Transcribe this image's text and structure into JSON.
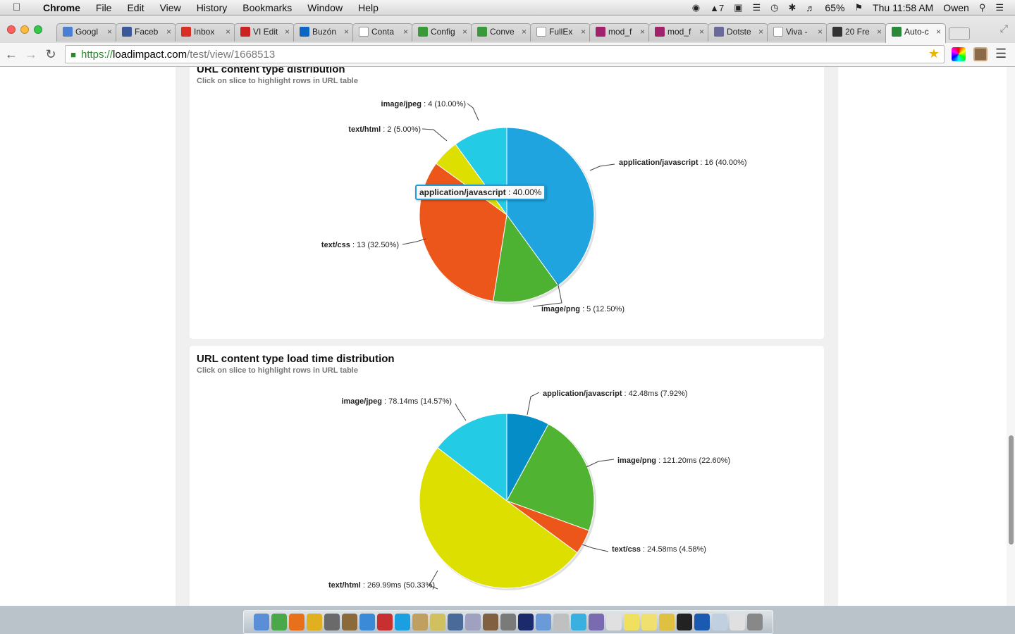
{
  "os_menu": {
    "app_name": "Chrome",
    "items": [
      "File",
      "Edit",
      "View",
      "History",
      "Bookmarks",
      "Window",
      "Help"
    ],
    "status": {
      "badge": "7",
      "battery": "65%",
      "clock": "Thu 11:58 AM",
      "user": "Owen"
    }
  },
  "tabs": [
    {
      "title": "Googl",
      "icon": "translate-icon",
      "color": "#4a7fd4"
    },
    {
      "title": "Faceb",
      "icon": "facebook-icon",
      "color": "#3b5998"
    },
    {
      "title": "Inbox",
      "icon": "gmail-icon",
      "color": "#d93025"
    },
    {
      "title": "VI Edit",
      "icon": "vi-icon",
      "color": "#cc2222"
    },
    {
      "title": "Buzón",
      "icon": "linkedin-icon",
      "color": "#0a66c2"
    },
    {
      "title": "Conta",
      "icon": "page-icon",
      "color": "#ffffff"
    },
    {
      "title": "Config",
      "icon": "green-g-icon",
      "color": "#3a9a3a"
    },
    {
      "title": "Conve",
      "icon": "green-g-icon",
      "color": "#3a9a3a"
    },
    {
      "title": "FullEx",
      "icon": "page-icon",
      "color": "#ffffff"
    },
    {
      "title": "mod_f",
      "icon": "feather-icon",
      "color": "#a0226a"
    },
    {
      "title": "mod_f",
      "icon": "feather-icon",
      "color": "#a0226a"
    },
    {
      "title": "Dotste",
      "icon": "dotstore-icon",
      "color": "#6a6a9a"
    },
    {
      "title": "Viva -",
      "icon": "page-icon",
      "color": "#ffffff"
    },
    {
      "title": "20 Fre",
      "icon": "sr-icon",
      "color": "#333333"
    },
    {
      "title": "Auto-c",
      "icon": "loadimpact-icon",
      "color": "#2a8a3a",
      "active": true
    }
  ],
  "address": {
    "scheme": "https://",
    "host": "loadimpact.com",
    "path": "/test/view/1668513"
  },
  "panels": [
    {
      "title": "URL content type distribution",
      "subtitle": "Click on slice to highlight rows in URL table",
      "tooltip": {
        "name": "application/javascript",
        "value": " : 40.00%"
      }
    },
    {
      "title": "URL content type load time distribution",
      "subtitle": "Click on slice to highlight rows in URL table"
    }
  ],
  "chart_data": [
    {
      "type": "pie",
      "title": "URL content type distribution",
      "slices": [
        {
          "name": "application/javascript",
          "label": " : 16 (40.00%)",
          "value": 16,
          "percent": 40.0,
          "color": "#1fa4df"
        },
        {
          "name": "image/png",
          "label": " : 5 (12.50%)",
          "value": 5,
          "percent": 12.5,
          "color": "#4db132"
        },
        {
          "name": "text/css",
          "label": " : 13 (32.50%)",
          "value": 13,
          "percent": 32.5,
          "color": "#ec561b"
        },
        {
          "name": "text/html",
          "label": " : 2 (5.00%)",
          "value": 2,
          "percent": 5.0,
          "color": "#dddf00"
        },
        {
          "name": "image/jpeg",
          "label": " : 4 (10.00%)",
          "value": 4,
          "percent": 10.0,
          "color": "#24cbe5"
        }
      ]
    },
    {
      "type": "pie",
      "title": "URL content type load time distribution",
      "slices": [
        {
          "name": "application/javascript",
          "label": " : 42.48ms (7.92%)",
          "value": 42.48,
          "percent": 7.92,
          "color": "#058dc7"
        },
        {
          "name": "image/png",
          "label": " : 121.20ms (22.60%)",
          "value": 121.2,
          "percent": 22.6,
          "color": "#50b432"
        },
        {
          "name": "text/css",
          "label": " : 24.58ms (4.58%)",
          "value": 24.58,
          "percent": 4.58,
          "color": "#ed561b"
        },
        {
          "name": "text/html",
          "label": " : 269.99ms (50.33%)",
          "value": 269.99,
          "percent": 50.33,
          "color": "#dddf00"
        },
        {
          "name": "image/jpeg",
          "label": " : 78.14ms (14.57%)",
          "value": 78.14,
          "percent": 14.57,
          "color": "#24cbe5"
        }
      ]
    }
  ],
  "dock": {
    "apps": [
      "finder-icon",
      "app-icon",
      "firefox-icon",
      "chrome-icon",
      "app-icon",
      "app-icon",
      "safari-icon",
      "filezilla-icon",
      "skype-icon",
      "app-icon",
      "app-icon",
      "app-icon",
      "app-icon",
      "app-icon",
      "app-icon",
      "photoshop-icon",
      "app-icon",
      "app-icon",
      "itunes-icon",
      "app-icon",
      "app-icon",
      "notes-icon",
      "stickies-icon",
      "app-icon",
      "terminal-icon",
      "word-icon",
      "app-icon",
      "app-icon",
      "trash-icon"
    ]
  }
}
